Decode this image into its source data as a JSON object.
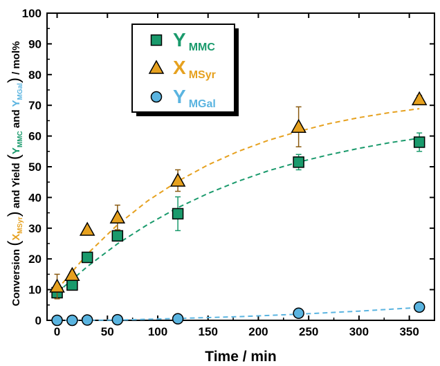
{
  "chart_data": {
    "type": "scatter",
    "xlabel": "Time / min",
    "ylabel": {
      "prefix": "Conversion ",
      "x_main": "X",
      "x_sub": "MSyr",
      "middle": " and Yield ",
      "y1_main": "Y",
      "y1_sub": "MMC",
      "and": " and ",
      "y2_main": "Y",
      "y2_sub": "MGal",
      "suffix": " / mol%"
    },
    "xlim": [
      -10,
      375
    ],
    "ylim": [
      0,
      100
    ],
    "xticks": [
      0,
      50,
      100,
      150,
      200,
      250,
      300,
      350
    ],
    "yticks": [
      0,
      10,
      20,
      30,
      40,
      50,
      60,
      70,
      80,
      90,
      100
    ],
    "legend_position": "top-left",
    "colors": {
      "ymmc": "#1a9a6c",
      "xmsyr": "#e6a11f",
      "ymgal": "#5ab4e0"
    },
    "series": [
      {
        "key": "ymmc",
        "name_main": "Y",
        "name_sub": "MMC",
        "marker": "square",
        "color": "#1a9a6c",
        "x": [
          0,
          15,
          30,
          60,
          120,
          240,
          360
        ],
        "y": [
          9.0,
          11.5,
          20.5,
          27.5,
          34.7,
          51.5,
          58.0
        ],
        "err": [
          1.5,
          1.0,
          0.8,
          1.5,
          5.5,
          2.5,
          3.0
        ],
        "fit": [
          [
            0,
            9.0
          ],
          [
            30,
            17.5
          ],
          [
            60,
            24.9
          ],
          [
            90,
            31.2
          ],
          [
            120,
            36.7
          ],
          [
            150,
            41.3
          ],
          [
            180,
            45.3
          ],
          [
            210,
            48.7
          ],
          [
            240,
            51.5
          ],
          [
            270,
            53.9
          ],
          [
            300,
            56.0
          ],
          [
            330,
            57.8
          ],
          [
            360,
            59.3
          ]
        ]
      },
      {
        "key": "xmsyr",
        "name_main": "X",
        "name_sub": "MSyr",
        "marker": "triangle",
        "color": "#e6a11f",
        "x": [
          0,
          15,
          30,
          60,
          120,
          240,
          360
        ],
        "y": [
          11.0,
          14.8,
          29.5,
          33.5,
          45.5,
          63.0,
          72.0
        ],
        "err": [
          4.0,
          1.0,
          0.8,
          4.0,
          3.5,
          6.5,
          1.2
        ],
        "fit": [
          [
            0,
            10.0
          ],
          [
            30,
            21.6
          ],
          [
            60,
            31.1
          ],
          [
            90,
            38.9
          ],
          [
            120,
            45.3
          ],
          [
            150,
            50.6
          ],
          [
            180,
            55.0
          ],
          [
            210,
            58.6
          ],
          [
            240,
            61.5
          ],
          [
            270,
            64.0
          ],
          [
            300,
            66.0
          ],
          [
            330,
            67.6
          ],
          [
            360,
            68.9
          ]
        ]
      },
      {
        "key": "ymgal",
        "name_main": "Y",
        "name_sub": "MGal",
        "marker": "circle",
        "color": "#5ab4e0",
        "x": [
          0,
          15,
          30,
          60,
          120,
          240,
          360
        ],
        "y": [
          0.0,
          0.0,
          0.1,
          0.2,
          0.5,
          2.3,
          4.3
        ],
        "err": [
          0.2,
          0.2,
          0.2,
          0.3,
          0.5,
          0.8,
          1.0
        ],
        "fit": [
          [
            0,
            0.0
          ],
          [
            60,
            0.1
          ],
          [
            120,
            0.6
          ],
          [
            180,
            1.2
          ],
          [
            240,
            2.0
          ],
          [
            300,
            3.0
          ],
          [
            360,
            4.2
          ]
        ]
      }
    ]
  }
}
